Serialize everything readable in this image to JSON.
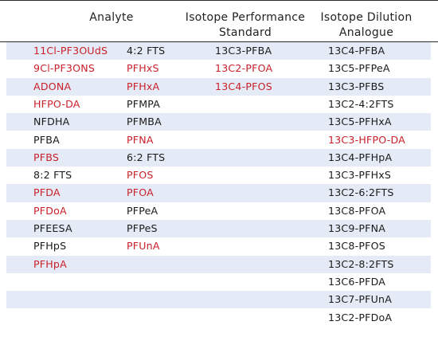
{
  "headers": {
    "analyte": "Analyte",
    "ips_line1": "Isotope Performance",
    "ips_line2": "Standard",
    "ida_line1": "Isotope Dilution",
    "ida_line2": "Analogue"
  },
  "colors": {
    "red": "#c9202a",
    "black": "#1a1a1a",
    "shade": "#e5ebf6"
  },
  "rows": [
    {
      "c1": "11Cl-PF3OUdS",
      "c1_red": true,
      "c2": "4:2 FTS",
      "c2_red": false,
      "c3": "13C3-PFBA",
      "c3_red": false,
      "c4": "13C4-PFBA",
      "c4_red": false
    },
    {
      "c1": "9Cl-PF3ONS",
      "c1_red": true,
      "c2": "PFHxS",
      "c2_red": true,
      "c3": "13C2-PFOA",
      "c3_red": true,
      "c4": "13C5-PFPeA",
      "c4_red": false
    },
    {
      "c1": "ADONA",
      "c1_red": true,
      "c2": "PFHxA",
      "c2_red": true,
      "c3": "13C4-PFOS",
      "c3_red": true,
      "c4": "13C3-PFBS",
      "c4_red": false
    },
    {
      "c1": "HFPO-DA",
      "c1_red": true,
      "c2": "PFMPA",
      "c2_red": false,
      "c3": "",
      "c3_red": false,
      "c4": "13C2-4:2FTS",
      "c4_red": false
    },
    {
      "c1": "NFDHA",
      "c1_red": false,
      "c2": "PFMBA",
      "c2_red": false,
      "c3": "",
      "c3_red": false,
      "c4": "13C5-PFHxA",
      "c4_red": false
    },
    {
      "c1": "PFBA",
      "c1_red": false,
      "c2": "PFNA",
      "c2_red": true,
      "c3": "",
      "c3_red": false,
      "c4": "13C3-HFPO-DA",
      "c4_red": true
    },
    {
      "c1": "PFBS",
      "c1_red": true,
      "c2": "6:2 FTS",
      "c2_red": false,
      "c3": "",
      "c3_red": false,
      "c4": "13C4-PFHpA",
      "c4_red": false
    },
    {
      "c1": "8:2 FTS",
      "c1_red": false,
      "c2": "PFOS",
      "c2_red": true,
      "c3": "",
      "c3_red": false,
      "c4": "13C3-PFHxS",
      "c4_red": false
    },
    {
      "c1": "PFDA",
      "c1_red": true,
      "c2": "PFOA",
      "c2_red": true,
      "c3": "",
      "c3_red": false,
      "c4": "13C2-6:2FTS",
      "c4_red": false
    },
    {
      "c1": "PFDoA",
      "c1_red": true,
      "c2": "PFPeA",
      "c2_red": false,
      "c3": "",
      "c3_red": false,
      "c4": "13C8-PFOA",
      "c4_red": false
    },
    {
      "c1": "PFEESA",
      "c1_red": false,
      "c2": "PFPeS",
      "c2_red": false,
      "c3": "",
      "c3_red": false,
      "c4": "13C9-PFNA",
      "c4_red": false
    },
    {
      "c1": "PFHpS",
      "c1_red": false,
      "c2": "PFUnA",
      "c2_red": true,
      "c3": "",
      "c3_red": false,
      "c4": "13C8-PFOS",
      "c4_red": false
    },
    {
      "c1": "PFHpA",
      "c1_red": true,
      "c2": "",
      "c2_red": false,
      "c3": "",
      "c3_red": false,
      "c4": "13C2-8:2FTS",
      "c4_red": false
    },
    {
      "c1": "",
      "c1_red": false,
      "c2": "",
      "c2_red": false,
      "c3": "",
      "c3_red": false,
      "c4": "13C6-PFDA",
      "c4_red": false
    },
    {
      "c1": "",
      "c1_red": false,
      "c2": "",
      "c2_red": false,
      "c3": "",
      "c3_red": false,
      "c4": "13C7-PFUnA",
      "c4_red": false
    },
    {
      "c1": "",
      "c1_red": false,
      "c2": "",
      "c2_red": false,
      "c3": "",
      "c3_red": false,
      "c4": "13C2-PFDoA",
      "c4_red": false
    }
  ]
}
